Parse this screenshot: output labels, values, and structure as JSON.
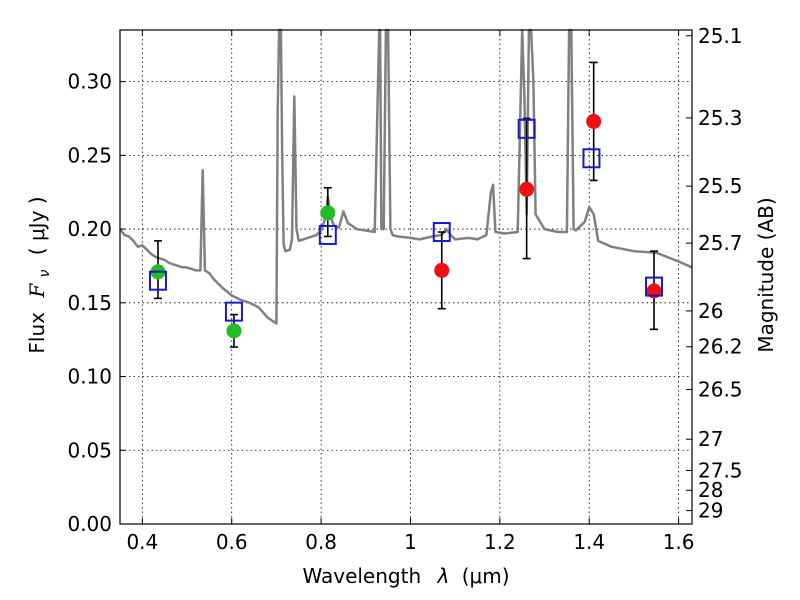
{
  "chart_data": {
    "type": "scatter",
    "title": "",
    "xlabel_text": "Wavelength",
    "xlabel_symbol": "λ",
    "xlabel_unit": "(μm)",
    "ylabel_text": "Flux",
    "ylabel_symbol": "F",
    "ylabel_subscript": "ν",
    "ylabel_unit": "( μJy )",
    "y2label": "Magnitude (AB)",
    "xlim": [
      0.35,
      1.63
    ],
    "ylim": [
      0.0,
      0.335
    ],
    "grid": true,
    "x_ticks": [
      0.4,
      0.6,
      0.8,
      1.0,
      1.2,
      1.4,
      1.6
    ],
    "x_tick_labels": [
      "0.4",
      "0.6",
      "0.8",
      "1",
      "1.2",
      "1.4",
      "1.6"
    ],
    "y_ticks": [
      0.0,
      0.05,
      0.1,
      0.15,
      0.2,
      0.25,
      0.3
    ],
    "y_tick_labels": [
      "0.00",
      "0.05",
      "0.10",
      "0.15",
      "0.20",
      "0.25",
      "0.30"
    ],
    "y2_ticks": [
      {
        "label": "25.1",
        "flux": 0.3311
      },
      {
        "label": "25.3",
        "flux": 0.2754
      },
      {
        "label": "25.5",
        "flux": 0.2291
      },
      {
        "label": "25.7",
        "flux": 0.1905
      },
      {
        "label": "26",
        "flux": 0.1445
      },
      {
        "label": "26.2",
        "flux": 0.1202
      },
      {
        "label": "26.5",
        "flux": 0.0912
      },
      {
        "label": "27",
        "flux": 0.0575
      },
      {
        "label": "27.5",
        "flux": 0.0363
      },
      {
        "label": "28",
        "flux": 0.0229
      },
      {
        "label": "29",
        "flux": 0.0091
      }
    ],
    "colors": {
      "model": "#808080",
      "green": "#22bb22",
      "red": "#ee1111",
      "square": "#1a1acc",
      "errorbar": "#000000"
    },
    "series": [
      {
        "name": "model spectrum",
        "type": "line",
        "x": [
          0.35,
          0.36,
          0.37,
          0.38,
          0.39,
          0.4,
          0.41,
          0.42,
          0.43,
          0.44,
          0.45,
          0.46,
          0.47,
          0.48,
          0.49,
          0.5,
          0.51,
          0.52,
          0.53,
          0.535,
          0.54,
          0.55,
          0.56,
          0.58,
          0.6,
          0.62,
          0.64,
          0.66,
          0.68,
          0.7,
          0.703,
          0.706,
          0.71,
          0.713,
          0.716,
          0.72,
          0.73,
          0.735,
          0.74,
          0.745,
          0.75,
          0.76,
          0.77,
          0.78,
          0.79,
          0.8,
          0.81,
          0.815,
          0.82,
          0.825,
          0.83,
          0.84,
          0.85,
          0.86,
          0.87,
          0.88,
          0.9,
          0.92,
          0.93,
          0.932,
          0.935,
          0.94,
          0.945,
          0.95,
          0.955,
          0.96,
          0.97,
          1.0,
          1.02,
          1.05,
          1.07,
          1.08,
          1.09,
          1.1,
          1.13,
          1.15,
          1.17,
          1.18,
          1.185,
          1.19,
          1.21,
          1.24,
          1.25,
          1.255,
          1.26,
          1.265,
          1.27,
          1.275,
          1.28,
          1.3,
          1.33,
          1.35,
          1.355,
          1.36,
          1.365,
          1.37,
          1.39,
          1.4,
          1.41,
          1.42,
          1.45,
          1.5,
          1.55,
          1.6,
          1.63
        ],
        "y": [
          0.2,
          0.196,
          0.195,
          0.192,
          0.188,
          0.189,
          0.186,
          0.183,
          0.181,
          0.18,
          0.179,
          0.177,
          0.176,
          0.175,
          0.174,
          0.174,
          0.173,
          0.172,
          0.172,
          0.24,
          0.172,
          0.17,
          0.166,
          0.16,
          0.155,
          0.152,
          0.15,
          0.147,
          0.14,
          0.136,
          0.28,
          0.335,
          0.335,
          0.25,
          0.19,
          0.185,
          0.186,
          0.193,
          0.29,
          0.2,
          0.192,
          0.193,
          0.194,
          0.195,
          0.196,
          0.199,
          0.208,
          0.222,
          0.211,
          0.205,
          0.202,
          0.201,
          0.212,
          0.204,
          0.202,
          0.2,
          0.199,
          0.198,
          0.335,
          0.335,
          0.2,
          0.2,
          0.335,
          0.335,
          0.2,
          0.196,
          0.195,
          0.194,
          0.193,
          0.195,
          0.196,
          0.2,
          0.196,
          0.193,
          0.194,
          0.193,
          0.196,
          0.225,
          0.23,
          0.198,
          0.197,
          0.198,
          0.335,
          0.29,
          0.21,
          0.335,
          0.335,
          0.3,
          0.21,
          0.2,
          0.198,
          0.198,
          0.335,
          0.335,
          0.2,
          0.199,
          0.205,
          0.215,
          0.21,
          0.192,
          0.188,
          0.185,
          0.184,
          0.178,
          0.174
        ]
      },
      {
        "name": "green points",
        "type": "scatter",
        "x": [
          0.435,
          0.605,
          0.815
        ],
        "y": [
          0.171,
          0.131,
          0.211
        ],
        "err": [
          [
            0.153,
            0.192
          ],
          [
            0.12,
            0.142
          ],
          [
            0.195,
            0.228
          ]
        ]
      },
      {
        "name": "red points",
        "type": "scatter",
        "x": [
          1.07,
          1.26,
          1.41,
          1.545
        ],
        "y": [
          0.172,
          0.227,
          0.273,
          0.158
        ],
        "err": [
          [
            0.146,
            0.198
          ],
          [
            0.18,
            0.275
          ],
          [
            0.233,
            0.313
          ],
          [
            0.132,
            0.185
          ]
        ]
      },
      {
        "name": "model photometry",
        "type": "scatter",
        "x": [
          0.435,
          0.605,
          0.815,
          1.07,
          1.26,
          1.405,
          1.545
        ],
        "y": [
          0.165,
          0.144,
          0.196,
          0.198,
          0.268,
          0.248,
          0.161
        ]
      }
    ]
  }
}
